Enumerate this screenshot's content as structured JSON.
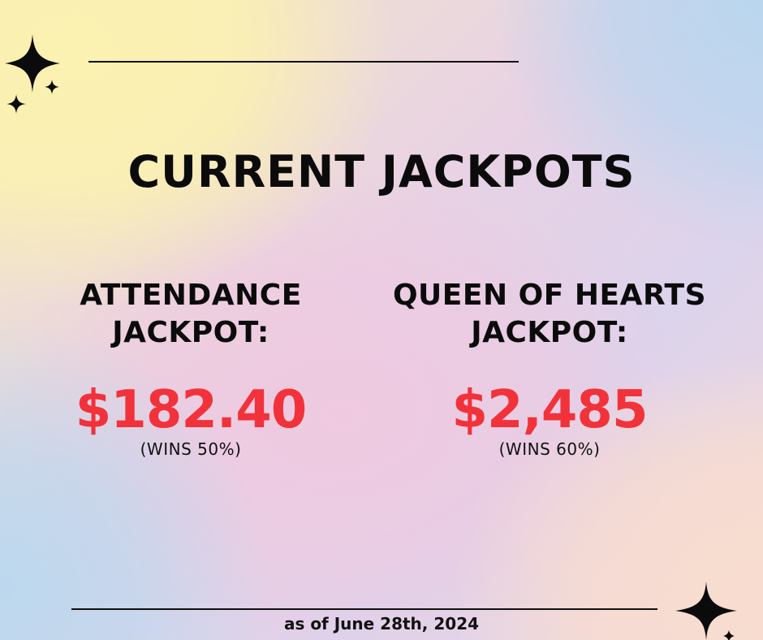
{
  "title": "CURRENT JACKPOTS",
  "jackpots": [
    {
      "label_line1": "ATTENDANCE",
      "label_line2": "JACKPOT:",
      "amount": "$182.40",
      "wins": "(WINS 50%)"
    },
    {
      "label_line1": "QUEEN OF HEARTS",
      "label_line2": "JACKPOT:",
      "amount": "$2,485",
      "wins": "(WINS 60%)"
    }
  ],
  "footer": "as of June 28th, 2024",
  "colors": {
    "amount": "#f2323a",
    "text": "#0b0b0b"
  },
  "decorations": [
    "sparkle-icon"
  ]
}
